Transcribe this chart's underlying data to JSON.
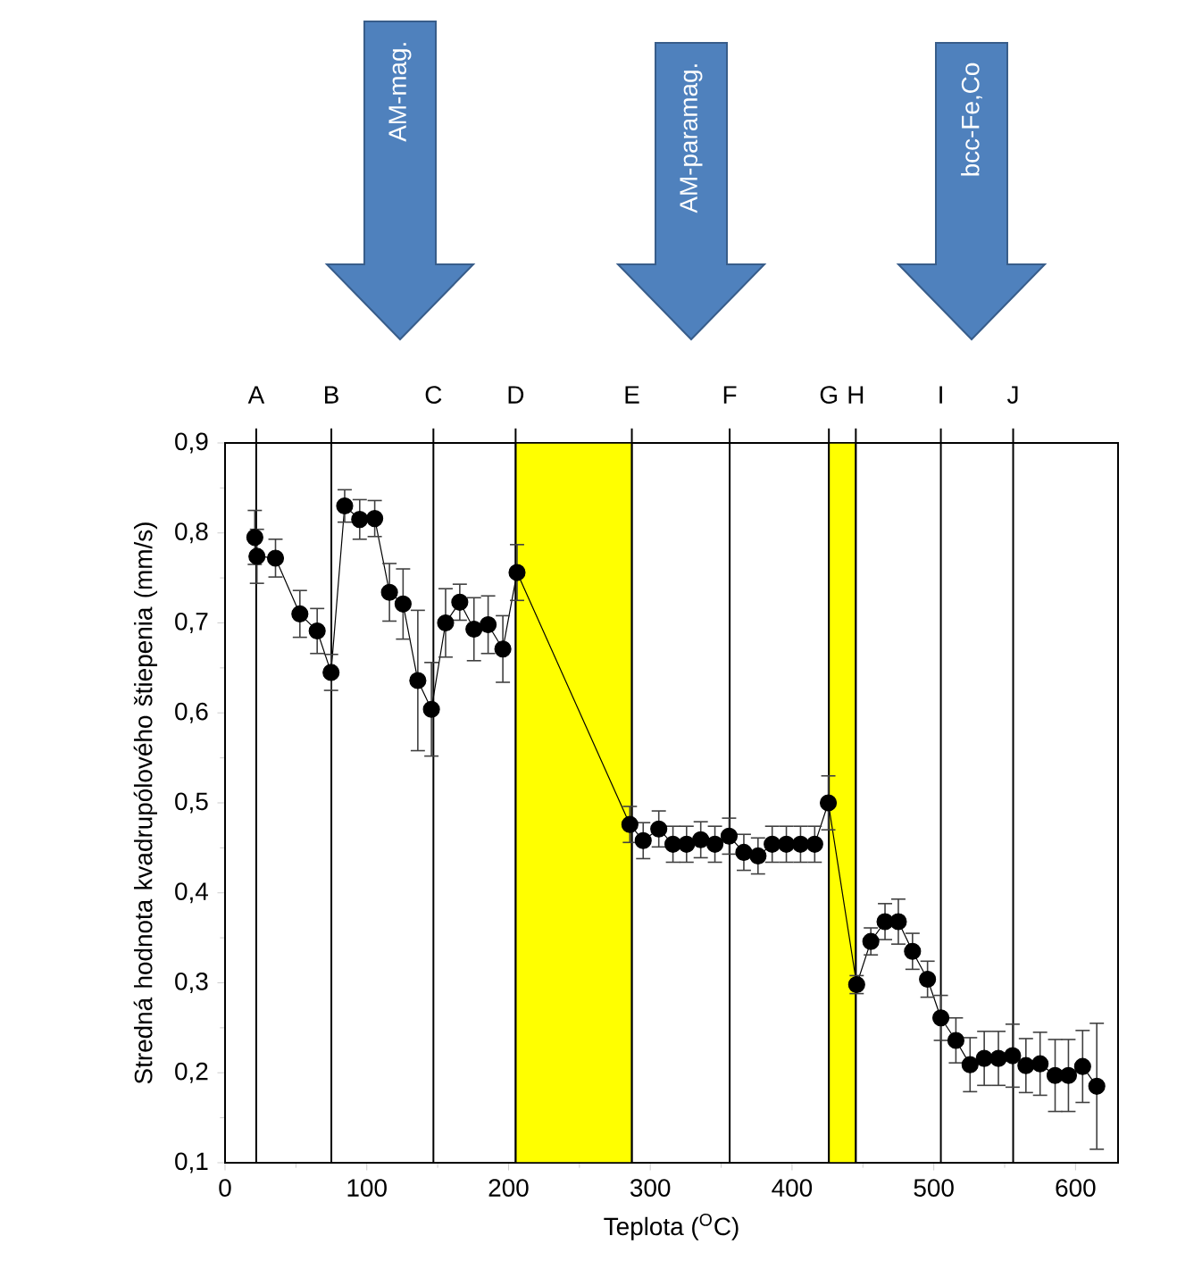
{
  "chart_data": {
    "type": "line",
    "xlabel": "Teplota ($^{O}$C)",
    "ylabel": "Stredná hodnota kvadrupólového štiepenia (mm/s)",
    "x": [
      21,
      22.5,
      35.6,
      52.8,
      65,
      74.8,
      84.4,
      95,
      105.6,
      116,
      125.6,
      136,
      145.6,
      155.6,
      165.6,
      175.6,
      185.6,
      196,
      206,
      285.6,
      295,
      306,
      316,
      325.6,
      335.6,
      345.6,
      355.6,
      366,
      376,
      386,
      396,
      406,
      416,
      425.6,
      445.6,
      455.6,
      465.6,
      475,
      485,
      495.6,
      505,
      515.6,
      525.6,
      535.6,
      545.6,
      555.6,
      565,
      575,
      585.6,
      595,
      605,
      615
    ],
    "series": [
      {
        "color": "#000000",
        "values": [
          0.795,
          0.774,
          0.772,
          0.71,
          0.691,
          0.645,
          0.83,
          0.815,
          0.816,
          0.734,
          0.721,
          0.636,
          0.604,
          0.7,
          0.723,
          0.693,
          0.698,
          0.671,
          0.756,
          0.476,
          0.458,
          0.471,
          0.454,
          0.454,
          0.459,
          0.454,
          0.463,
          0.445,
          0.441,
          0.454,
          0.454,
          0.454,
          0.454,
          0.5,
          0.298,
          0.346,
          0.368,
          0.368,
          0.335,
          0.304,
          0.261,
          0.236,
          0.209,
          0.216,
          0.216,
          0.219,
          0.208,
          0.21,
          0.197,
          0.197,
          0.207,
          0.185
        ],
        "errors": [
          0.03,
          0.03,
          0.021,
          0.026,
          0.025,
          0.02,
          0.018,
          0.022,
          0.02,
          0.032,
          0.039,
          0.078,
          0.052,
          0.038,
          0.02,
          0.035,
          0.032,
          0.037,
          0.031,
          0.02,
          0.02,
          0.02,
          0.02,
          0.02,
          0.02,
          0.02,
          0.02,
          0.02,
          0.02,
          0.02,
          0.02,
          0.02,
          0.02,
          0.03,
          0.01,
          0.015,
          0.02,
          0.025,
          0.02,
          0.02,
          0.025,
          0.025,
          0.03,
          0.03,
          0.03,
          0.035,
          0.03,
          0.035,
          0.04,
          0.04,
          0.04,
          0.07
        ]
      }
    ],
    "marker": "circle",
    "line_style": "solid",
    "xlim": [
      0,
      630
    ],
    "xticks": [
      0,
      100,
      200,
      300,
      400,
      500,
      600
    ],
    "ylim": [
      0.1,
      0.9
    ],
    "yticks": [
      {
        "value": 0.1,
        "label": "0,1"
      },
      {
        "value": 0.2,
        "label": "0,2"
      },
      {
        "value": 0.3,
        "label": "0,3"
      },
      {
        "value": 0.4,
        "label": "0,4"
      },
      {
        "value": 0.5,
        "label": "0,5"
      },
      {
        "value": 0.6,
        "label": "0,6"
      },
      {
        "value": 0.7,
        "label": "0,7"
      },
      {
        "value": 0.8,
        "label": "0,8"
      },
      {
        "value": 0.9,
        "label": "0,9"
      }
    ],
    "ref_lines": [
      {
        "axis": "x",
        "value": 22,
        "label": "A"
      },
      {
        "axis": "x",
        "value": 75,
        "label": "B"
      },
      {
        "axis": "x",
        "value": 147,
        "label": "C"
      },
      {
        "axis": "x",
        "value": 205,
        "label": "D"
      },
      {
        "axis": "x",
        "value": 287,
        "label": "E"
      },
      {
        "axis": "x",
        "value": 356,
        "label": "F"
      },
      {
        "axis": "x",
        "value": 426,
        "label": "G"
      },
      {
        "axis": "x",
        "value": 445,
        "label": "H"
      },
      {
        "axis": "x",
        "value": 505,
        "label": "I"
      },
      {
        "axis": "x",
        "value": 556,
        "label": "J"
      }
    ],
    "bands": [
      {
        "axis": "x",
        "from": 205,
        "to": 287,
        "color": "#ffff00"
      },
      {
        "axis": "x",
        "from": 426,
        "to": 445,
        "color": "#ffff00"
      }
    ],
    "annotations": [
      "AM-mag.",
      "AM-paramag.",
      "bcc-Fe,Co"
    ]
  }
}
